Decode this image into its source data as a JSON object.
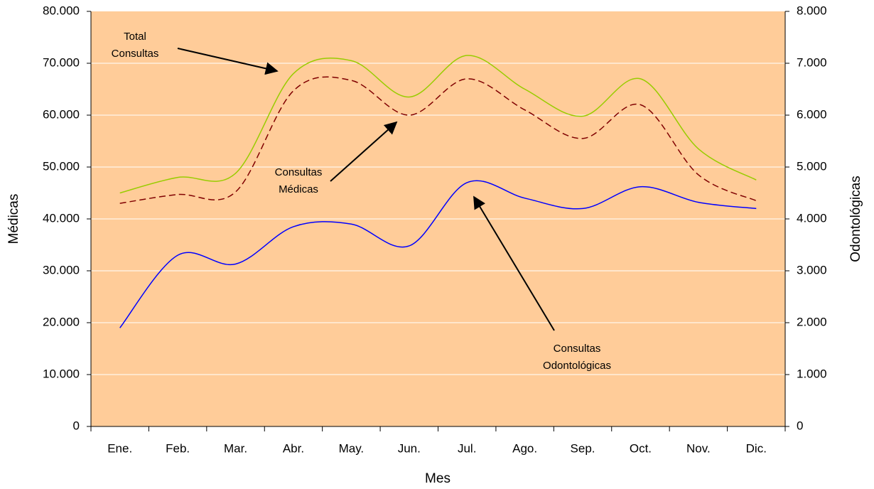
{
  "chart_data": {
    "type": "line",
    "x_label": "Mes",
    "y_label": "Médicas",
    "y2_label": "Odontológicas",
    "categories": [
      "Ene.",
      "Feb.",
      "Mar.",
      "Abr.",
      "May.",
      "Jun.",
      "Jul.",
      "Ago.",
      "Sep.",
      "Oct.",
      "Nov.",
      "Dic."
    ],
    "ylim": [
      0,
      80000
    ],
    "yticks": [
      0,
      {
        "value": 10000,
        "label": "10.000"
      },
      {
        "value": 20000,
        "label": "20.000"
      },
      {
        "value": 30000,
        "label": "30.000"
      },
      {
        "value": 40000,
        "label": "40.000"
      },
      {
        "value": 50000,
        "label": "50.000"
      },
      {
        "value": 60000,
        "label": "60.000"
      },
      {
        "value": 70000,
        "label": "70.000"
      },
      {
        "value": 80000,
        "label": "80.000"
      }
    ],
    "y2lim": [
      0,
      8000
    ],
    "y2ticks": [
      0,
      {
        "value": 1000,
        "label": "1.000"
      },
      {
        "value": 2000,
        "label": "2.000"
      },
      {
        "value": 3000,
        "label": "3.000"
      },
      {
        "value": 4000,
        "label": "4.000"
      },
      {
        "value": 5000,
        "label": "5.000"
      },
      {
        "value": 6000,
        "label": "6.000"
      },
      {
        "value": 7000,
        "label": "7.000"
      },
      {
        "value": 8000,
        "label": "8.000"
      }
    ],
    "grid": true,
    "background": "#ffcc99",
    "series": [
      {
        "name": "Total Consultas",
        "color": "#99cc00",
        "dash": false,
        "values": [
          45000,
          48000,
          48800,
          68000,
          70500,
          63500,
          71500,
          65000,
          59800,
          67000,
          53500,
          47500
        ]
      },
      {
        "name": "Consultas Médicas",
        "color": "#800000",
        "dash": true,
        "values": [
          43000,
          44700,
          45200,
          64700,
          66700,
          60000,
          67000,
          61000,
          55500,
          62000,
          48500,
          43500
        ]
      },
      {
        "name": "Consultas Odontológicas",
        "color": "#0000ff",
        "dash": false,
        "axis": "y2",
        "values": [
          1900,
          3300,
          3130,
          3850,
          3900,
          3480,
          4700,
          4400,
          4200,
          4620,
          4320,
          4200
        ]
      }
    ],
    "annotations": [
      {
        "lines": [
          "Total",
          "Consultas"
        ]
      },
      {
        "lines": [
          "Consultas",
          "Médicas"
        ]
      },
      {
        "lines": [
          "Consultas",
          "Odontológicas"
        ]
      }
    ]
  }
}
